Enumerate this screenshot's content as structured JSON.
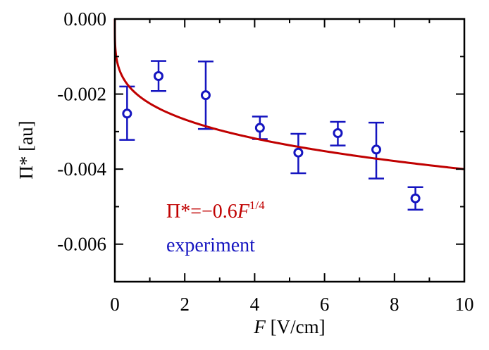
{
  "chart_data": {
    "type": "scatter",
    "xlabel": "F [V/cm]",
    "ylabel": "Π* [au]",
    "xlim": [
      0,
      10
    ],
    "ylim": [
      -0.007,
      0.0
    ],
    "x_ticks": [
      0,
      2,
      4,
      6,
      8,
      10
    ],
    "x_tick_labels": [
      "0",
      "2",
      "4",
      "6",
      "8",
      "10"
    ],
    "y_ticks": [
      0.0,
      -0.002,
      -0.004,
      -0.006
    ],
    "y_tick_labels": [
      "0.000",
      "-0.002",
      "-0.004",
      "-0.006"
    ],
    "grid": false,
    "legend_placement": "bottom-left",
    "series": [
      {
        "name": "experiment",
        "kind": "points-with-errorbars",
        "color": "#1515c0",
        "x": [
          0.35,
          1.25,
          2.6,
          4.15,
          5.25,
          6.38,
          7.48,
          8.6
        ],
        "y": [
          -0.00252,
          -0.00152,
          -0.00203,
          -0.0029,
          -0.00356,
          -0.00304,
          -0.00348,
          -0.00478
        ],
        "yerr_low": [
          0.0007,
          0.0004,
          0.0009,
          0.0003,
          0.00055,
          0.00033,
          0.00077,
          0.0003
        ],
        "yerr_high": [
          0.00072,
          0.0004,
          0.0009,
          0.0003,
          0.0005,
          0.0003,
          0.00072,
          0.0003
        ]
      },
      {
        "name": "Π*=−0.6F^(1/4)",
        "kind": "line",
        "color": "#c00000",
        "formula": "y = -0.00225 * x^0.25"
      }
    ],
    "legend": {
      "fit_prefix": "Π*=−0.6",
      "fit_var": "F",
      "fit_exp": "1/4",
      "experiment_label": "experiment"
    }
  }
}
